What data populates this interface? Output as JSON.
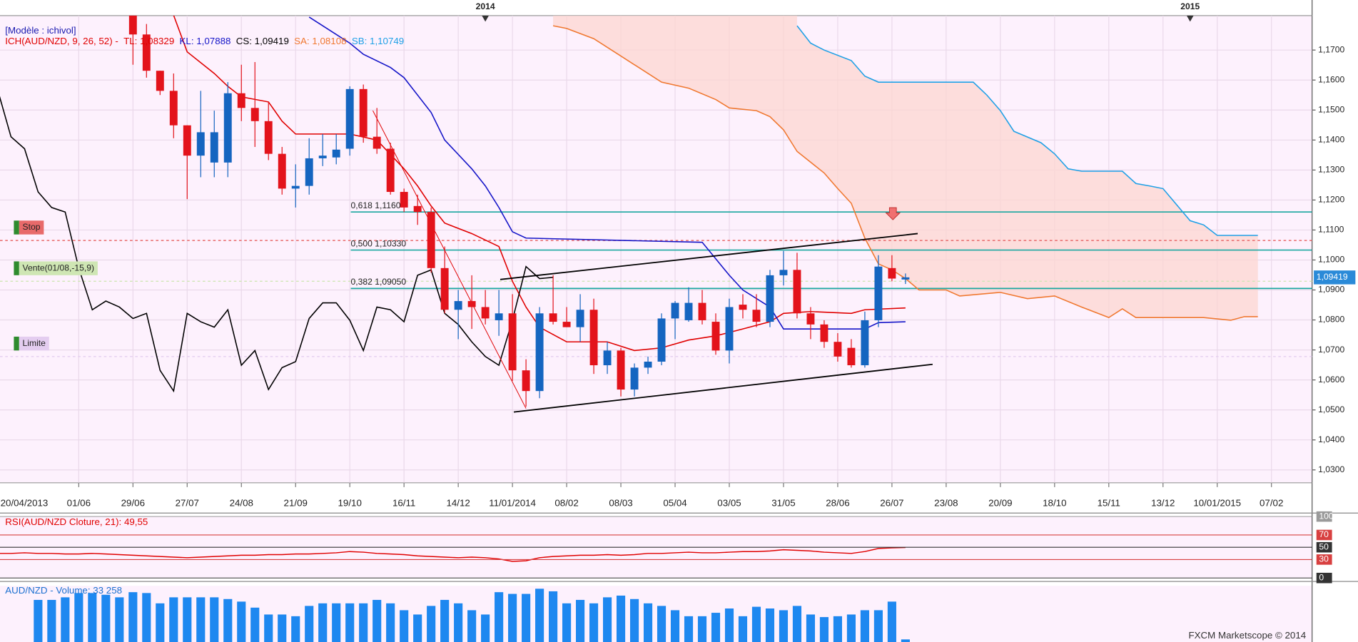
{
  "chart_data": [
    {
      "type": "candlestick",
      "model": "[Modèle : ichivol]",
      "indicator": "ICH(AUD/NZD, 9, 26, 52) -",
      "footer": "FXCM Marketscope © 2014",
      "xlim": [
        -5.81,
        91
      ],
      "ylim": [
        1.0257,
        1.1815
      ],
      "grid": true,
      "up_color": "#1565c0",
      "down_color": "#e3131b",
      "xticks": [
        {
          "value": -6,
          "label": "20/04/2013"
        },
        {
          "value": 0,
          "label": "01/06"
        },
        {
          "value": 4,
          "label": "29/06"
        },
        {
          "value": 8,
          "label": "27/07"
        },
        {
          "value": 12,
          "label": "24/08"
        },
        {
          "value": 16,
          "label": "21/09"
        },
        {
          "value": 20,
          "label": "19/10"
        },
        {
          "value": 24,
          "label": "16/11"
        },
        {
          "value": 28,
          "label": "14/12"
        },
        {
          "value": 32,
          "label": "11/01/2014"
        },
        {
          "value": 36,
          "label": "08/02"
        },
        {
          "value": 40,
          "label": "08/03"
        },
        {
          "value": 44,
          "label": "05/04"
        },
        {
          "value": 48,
          "label": "03/05"
        },
        {
          "value": 52,
          "label": "31/05"
        },
        {
          "value": 56,
          "label": "28/06"
        },
        {
          "value": 60,
          "label": "26/07"
        },
        {
          "value": 64,
          "label": "23/08"
        },
        {
          "value": 68,
          "label": "20/09"
        },
        {
          "value": 72,
          "label": "18/10"
        },
        {
          "value": 76,
          "label": "15/11"
        },
        {
          "value": 80,
          "label": "13/12"
        },
        {
          "value": 84,
          "label": "10/01/2015"
        },
        {
          "value": 88,
          "label": "07/02"
        }
      ],
      "yticks": [
        {
          "value": 1.17,
          "label": "1,1700"
        },
        {
          "value": 1.16,
          "label": "1,1600"
        },
        {
          "value": 1.15,
          "label": "1,1500"
        },
        {
          "value": 1.14,
          "label": "1,1400"
        },
        {
          "value": 1.13,
          "label": "1,1300"
        },
        {
          "value": 1.12,
          "label": "1,1200"
        },
        {
          "value": 1.11,
          "label": "1,1100"
        },
        {
          "value": 1.1,
          "label": "1,1000"
        },
        {
          "value": 1.09,
          "label": "1,0900"
        },
        {
          "value": 1.08,
          "label": "1,0800"
        },
        {
          "value": 1.07,
          "label": "1,0700"
        },
        {
          "value": 1.06,
          "label": "1,0600"
        },
        {
          "value": 1.05,
          "label": "1,0500"
        },
        {
          "value": 1.04,
          "label": "1,0400"
        },
        {
          "value": 1.03,
          "label": "1,0300"
        }
      ],
      "year_markers": [
        {
          "value": 30,
          "label": "2014"
        },
        {
          "value": 82,
          "label": "2015"
        }
      ],
      "x": [
        4,
        5,
        6,
        7,
        8,
        9,
        10,
        11,
        12,
        13,
        14,
        15,
        16,
        17,
        18,
        19,
        20,
        21,
        22,
        23,
        24,
        25,
        26,
        27,
        28,
        29,
        30,
        31,
        32,
        33,
        34,
        35,
        36,
        37,
        38,
        39,
        40,
        41,
        42,
        43,
        44,
        45,
        46,
        47,
        48,
        49,
        50,
        51,
        52,
        53,
        54,
        55,
        56,
        57,
        58,
        59,
        60,
        61
      ],
      "open": [
        1.1816,
        1.1752,
        1.1631,
        1.1564,
        1.1449,
        1.1348,
        1.1325,
        1.1325,
        1.1556,
        1.1507,
        1.1463,
        1.1354,
        1.1238,
        1.1247,
        1.1339,
        1.1342,
        1.1371,
        1.157,
        1.1411,
        1.1371,
        1.1227,
        1.118,
        1.116,
        1.0973,
        1.0834,
        1.0863,
        1.0843,
        1.0799,
        1.0822,
        1.0632,
        1.0563,
        1.0822,
        1.0794,
        1.0776,
        1.0834,
        1.0649,
        1.0698,
        1.0568,
        1.0641,
        1.0661,
        1.0805,
        1.0799,
        1.0857,
        1.0794,
        1.0698,
        1.0851,
        1.0834,
        1.0794,
        1.0949,
        1.0967,
        1.0822,
        1.0785,
        1.0727,
        1.0707,
        1.0649,
        1.0799,
        1.0973,
        1.0935
      ],
      "high": [
        1.1816,
        1.1787,
        1.1631,
        1.1622,
        1.1449,
        1.1564,
        1.1498,
        1.1593,
        1.1651,
        1.166,
        1.1527,
        1.1377,
        1.1319,
        1.1406,
        1.142,
        1.142,
        1.1579,
        1.1585,
        1.1507,
        1.1391,
        1.1238,
        1.1218,
        1.1175,
        1.1045,
        1.09,
        1.0949,
        1.09,
        1.09,
        1.0886,
        1.0669,
        1.0843,
        1.0949,
        1.0843,
        1.0886,
        1.0871,
        1.0727,
        1.0707,
        1.0655,
        1.0678,
        1.0822,
        1.0863,
        1.0909,
        1.09,
        1.0822,
        1.0871,
        1.0886,
        1.0886,
        1.0967,
        1.103,
        1.1024,
        1.0843,
        1.0799,
        1.0756,
        1.0736,
        1.0828,
        1.1016,
        1.1016,
        1.0955
      ],
      "low": [
        1.1651,
        1.1608,
        1.155,
        1.1406,
        1.1203,
        1.1276,
        1.1276,
        1.1276,
        1.1463,
        1.1377,
        1.1333,
        1.1218,
        1.1175,
        1.1218,
        1.1313,
        1.1319,
        1.1348,
        1.1391,
        1.1354,
        1.1218,
        1.116,
        1.1117,
        1.0958,
        1.0822,
        1.0736,
        1.077,
        1.0785,
        1.0747,
        1.0597,
        1.0511,
        1.0539,
        1.0785,
        1.0776,
        1.0727,
        1.062,
        1.062,
        1.0545,
        1.0545,
        1.062,
        1.0649,
        1.0736,
        1.0794,
        1.0785,
        1.0684,
        1.0655,
        1.0805,
        1.0776,
        1.0776,
        1.0915,
        1.0805,
        1.0736,
        1.0707,
        1.0661,
        1.0641,
        1.0641,
        1.0776,
        1.0929,
        1.092
      ],
      "close": [
        1.1752,
        1.1631,
        1.1564,
        1.1449,
        1.1348,
        1.1426,
        1.1426,
        1.1556,
        1.1507,
        1.1463,
        1.1354,
        1.1238,
        1.1247,
        1.1339,
        1.1348,
        1.1368,
        1.157,
        1.1411,
        1.1371,
        1.1227,
        1.1175,
        1.116,
        1.0973,
        1.0834,
        1.0863,
        1.0843,
        1.0805,
        1.0822,
        1.0632,
        1.0563,
        1.0822,
        1.0794,
        1.0776,
        1.0834,
        1.0649,
        1.0698,
        1.0568,
        1.0641,
        1.0661,
        1.0805,
        1.0857,
        1.0857,
        1.0799,
        1.0698,
        1.0843,
        1.0834,
        1.0794,
        1.0949,
        1.0967,
        1.0822,
        1.0785,
        1.0727,
        1.0678,
        1.0649,
        1.0799,
        1.0978,
        1.0938,
        1.0942
      ],
      "series": [
        {
          "name": "TL: 1,08329",
          "color": "#e00000",
          "x": [
            7,
            8,
            10,
            11,
            12,
            14,
            15,
            16,
            20,
            22,
            24,
            25,
            26,
            27,
            29,
            31,
            32,
            33,
            34,
            36,
            39,
            41,
            43,
            45,
            47,
            49,
            51,
            52,
            54,
            57,
            58,
            61
          ],
          "values": [
            1.1816,
            1.1694,
            1.1622,
            1.1579,
            1.1544,
            1.1527,
            1.1463,
            1.142,
            1.142,
            1.14,
            1.1304,
            1.1247,
            1.118,
            1.1123,
            1.1088,
            1.1045,
            1.0929,
            1.0843,
            1.0776,
            1.0727,
            1.0727,
            1.0698,
            1.0707,
            1.0733,
            1.0747,
            1.077,
            1.0794,
            1.0822,
            1.0828,
            1.0822,
            1.0834,
            1.084
          ]
        },
        {
          "name": "KL: 1,07888",
          "color": "#1414c8",
          "x": [
            17,
            19,
            20,
            21,
            23,
            24,
            26,
            27,
            29,
            30,
            31,
            32,
            33,
            46,
            48,
            49,
            51,
            52,
            58,
            59,
            61
          ],
          "values": [
            1.181,
            1.1752,
            1.1723,
            1.1686,
            1.1642,
            1.1608,
            1.1492,
            1.14,
            1.1304,
            1.1247,
            1.1175,
            1.1094,
            1.1073,
            1.1059,
            1.0949,
            1.09,
            1.0843,
            1.077,
            1.077,
            1.0791,
            1.0794
          ]
        },
        {
          "name": "CS: 1,09419",
          "color": "#000000",
          "x": [
            -6,
            -5,
            -4,
            -3,
            -2,
            -1,
            0,
            1,
            2,
            3,
            4,
            5,
            6,
            7,
            8,
            9,
            10,
            11,
            12,
            13,
            14,
            15,
            16,
            17,
            18,
            19,
            20,
            21,
            22,
            23,
            24,
            25,
            26,
            27,
            28,
            29,
            30,
            31,
            32,
            33,
            34,
            35
          ],
          "values": [
            1.157,
            1.1411,
            1.1371,
            1.1227,
            1.1175,
            1.116,
            1.0973,
            1.0834,
            1.0863,
            1.0843,
            1.0805,
            1.0822,
            1.0632,
            1.0563,
            1.0822,
            1.0794,
            1.0776,
            1.0834,
            1.0649,
            1.0698,
            1.0568,
            1.0641,
            1.0661,
            1.0805,
            1.0857,
            1.0857,
            1.0799,
            1.0698,
            1.0843,
            1.0834,
            1.0794,
            1.0949,
            1.0967,
            1.0822,
            1.0785,
            1.0727,
            1.0678,
            1.0649,
            1.0799,
            1.0978,
            1.0938,
            1.0942
          ]
        },
        {
          "name": "SA: 1,08108",
          "color": "#f07830",
          "x": [
            35,
            36,
            38,
            40,
            42,
            43,
            45,
            47,
            48,
            50,
            51,
            52,
            53,
            55,
            56,
            57,
            58,
            59,
            60,
            61,
            62,
            64,
            65,
            68,
            70,
            72,
            74,
            76,
            77,
            78,
            83,
            85,
            86,
            87
          ],
          "values": [
            1.1781,
            1.1772,
            1.1738,
            1.168,
            1.1622,
            1.1593,
            1.1573,
            1.1535,
            1.1507,
            1.1498,
            1.1478,
            1.1434,
            1.1362,
            1.129,
            1.1238,
            1.1189,
            1.1073,
            1.0987,
            1.0967,
            1.0938,
            1.09,
            1.09,
            1.088,
            1.0892,
            1.0871,
            1.088,
            1.0843,
            1.0808,
            1.0837,
            1.0808,
            1.0808,
            1.0799,
            1.0811,
            1.0811
          ]
        },
        {
          "name": "SB: 1,10749",
          "color": "#1ea0e6",
          "x": [
            53,
            54,
            55,
            57,
            58,
            59,
            66,
            67,
            68,
            69,
            71,
            72,
            73,
            74,
            77,
            78,
            79,
            80,
            82,
            83,
            84,
            87
          ],
          "values": [
            1.1781,
            1.1723,
            1.17,
            1.1665,
            1.1613,
            1.1593,
            1.1593,
            1.155,
            1.1498,
            1.1429,
            1.1391,
            1.1354,
            1.1304,
            1.1296,
            1.1296,
            1.1255,
            1.1247,
            1.1238,
            1.1131,
            1.1117,
            1.1082,
            1.1082
          ]
        }
      ],
      "cloud_color": "#fcd6d0",
      "fib_color": "#1aa7a0",
      "fib": [
        {
          "label": "0,618 1,1160",
          "value": 1.116
        },
        {
          "label": "0,500 1,10330",
          "value": 1.1033
        },
        {
          "label": "0,382 1,09050",
          "value": 1.0905
        }
      ],
      "levels": [
        {
          "label": "Stop",
          "value": 1.1065,
          "color": "#e86a6a"
        },
        {
          "label": "Vente(01/08,-15,9)",
          "value": 1.0929,
          "color": "#cfe6b4"
        },
        {
          "label": "Limite",
          "value": 1.0678,
          "color": "#e4cdf0"
        }
      ],
      "trendlines": [
        {
          "x": [
            32.1,
            63
          ],
          "values": [
            1.0493,
            1.0652
          ],
          "color": "#000000"
        },
        {
          "x": [
            31.1,
            61.9
          ],
          "values": [
            1.0935,
            1.1088
          ],
          "color": "#000000"
        },
        {
          "x": [
            21.7,
            33
          ],
          "values": [
            1.1498,
            1.0505
          ],
          "color": "#e00000"
        }
      ],
      "last_price": {
        "value": 1.09419,
        "label": "1,09419"
      }
    },
    {
      "type": "line",
      "title": "RSI(AUD/NZD Cloture, 21): 49,55",
      "color": "#e00000",
      "xlim": [
        -5.81,
        91
      ],
      "ylim": [
        0,
        100
      ],
      "yticks": [
        0,
        30,
        50,
        70,
        100
      ],
      "tick_colors": [
        "#333333",
        "#d84040",
        "#333333",
        "#d84040",
        "#9a9a9a"
      ],
      "x": [
        -6,
        -5,
        -4,
        -3,
        -2,
        -1,
        0,
        1,
        2,
        3,
        4,
        5,
        6,
        7,
        8,
        9,
        10,
        11,
        12,
        13,
        14,
        15,
        16,
        17,
        18,
        19,
        20,
        21,
        22,
        23,
        24,
        25,
        26,
        27,
        28,
        29,
        30,
        31,
        32,
        33,
        34,
        35,
        36,
        37,
        38,
        39,
        40,
        41,
        42,
        43,
        44,
        45,
        46,
        47,
        48,
        49,
        50,
        51,
        52,
        53,
        54,
        55,
        56,
        57,
        58,
        59,
        60,
        61
      ],
      "values": [
        40,
        40,
        41,
        40,
        40,
        39,
        39,
        40,
        39,
        38,
        37,
        36,
        35,
        34,
        33,
        34,
        35,
        36,
        37,
        37,
        38,
        38,
        39,
        39,
        40,
        41,
        43,
        42,
        40,
        39,
        38,
        36,
        35,
        34,
        33,
        34,
        33,
        31,
        27,
        28,
        33,
        35,
        36,
        37,
        37,
        38,
        37,
        38,
        40,
        40,
        41,
        42,
        41,
        41,
        42,
        43,
        43,
        44,
        46,
        45,
        44,
        42,
        41,
        40,
        43,
        48,
        49,
        49.55
      ]
    },
    {
      "type": "bar",
      "title": "AUD/NZD - Volume: 33 258",
      "color": "#1e88f0",
      "xlim": [
        -5.81,
        91
      ],
      "ylim": [
        0,
        720000
      ],
      "x": [
        -3,
        -2,
        -1,
        0,
        1,
        2,
        3,
        4,
        5,
        6,
        7,
        8,
        9,
        10,
        11,
        12,
        13,
        14,
        15,
        16,
        17,
        18,
        19,
        20,
        21,
        22,
        23,
        24,
        25,
        26,
        27,
        28,
        29,
        30,
        31,
        32,
        33,
        34,
        35,
        36,
        37,
        38,
        39,
        40,
        41,
        42,
        43,
        44,
        45,
        46,
        47,
        48,
        49,
        50,
        51,
        52,
        53,
        54,
        55,
        56,
        57,
        58,
        59,
        60,
        61
      ],
      "values": [
        539000,
        539000,
        572000,
        627000,
        627000,
        605000,
        572000,
        638000,
        627000,
        495000,
        572000,
        572000,
        572000,
        572000,
        550000,
        517000,
        440000,
        352000,
        352000,
        330000,
        462000,
        495000,
        495000,
        495000,
        495000,
        539000,
        495000,
        407000,
        352000,
        462000,
        539000,
        495000,
        407000,
        352000,
        638000,
        616000,
        616000,
        682000,
        649000,
        495000,
        539000,
        495000,
        572000,
        594000,
        550000,
        495000,
        462000,
        407000,
        330000,
        330000,
        374000,
        429000,
        330000,
        451000,
        429000,
        407000,
        462000,
        352000,
        319000,
        330000,
        352000,
        407000,
        407000,
        517000,
        33258
      ]
    }
  ]
}
